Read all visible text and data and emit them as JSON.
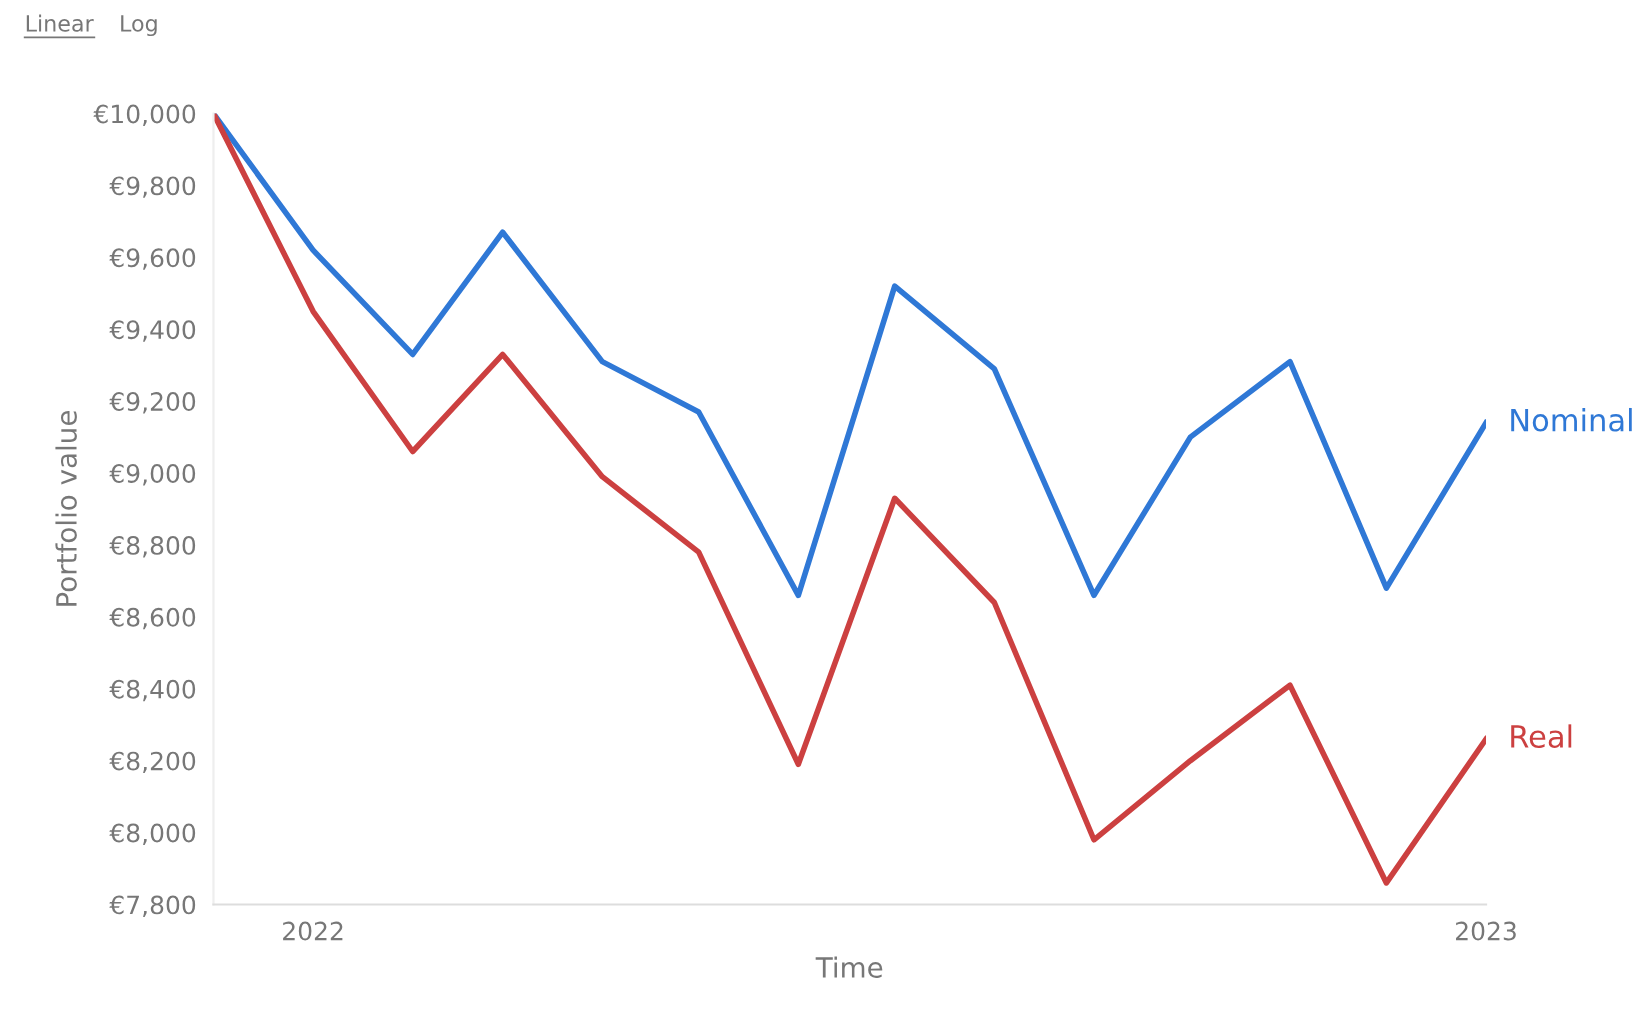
{
  "chart_data": {
    "type": "line",
    "xlabel": "Time",
    "ylabel": "Portfolio value",
    "annotations": [
      "Linear",
      "Log"
    ],
    "x": [
      "2021-12",
      "2022-01",
      "2022-02",
      "2022-03",
      "2022-04",
      "2022-05",
      "2022-06",
      "2022-07",
      "2022-08",
      "2022-09",
      "2022-10",
      "2022-11",
      "2022-12",
      "2023-01"
    ],
    "series": [
      {
        "name": "Nominal",
        "color": "#2f78d6",
        "values": [
          10000,
          9620,
          9330,
          9670,
          9310,
          9170,
          8660,
          9520,
          9290,
          8660,
          9100,
          9310,
          8680,
          9140
        ]
      },
      {
        "name": "Real",
        "color": "#cc4040",
        "values": [
          10000,
          9450,
          9060,
          9330,
          8990,
          8780,
          8190,
          8930,
          8640,
          7980,
          8200,
          8410,
          7860,
          8260
        ]
      }
    ],
    "xlim": [
      "2021-12",
      "2023-01"
    ],
    "xticks": [
      {
        "value": "2022-01",
        "label": "2022"
      },
      {
        "value": "2023-01",
        "label": "2023"
      }
    ],
    "ylim": [
      7800,
      10000
    ],
    "yticks": [
      {
        "value": 7800,
        "label": "€7,800"
      },
      {
        "value": 8000,
        "label": "€8,000"
      },
      {
        "value": 8200,
        "label": "€8,200"
      },
      {
        "value": 8400,
        "label": "€8,400"
      },
      {
        "value": 8600,
        "label": "€8,600"
      },
      {
        "value": 8800,
        "label": "€8,800"
      },
      {
        "value": 9000,
        "label": "€9,000"
      },
      {
        "value": 9200,
        "label": "€9,200"
      },
      {
        "value": 9400,
        "label": "€9,400"
      },
      {
        "value": 9600,
        "label": "€9,600"
      },
      {
        "value": 9800,
        "label": "€9,800"
      },
      {
        "value": 10000,
        "label": "€10,000"
      }
    ],
    "grid": false,
    "legend": false,
    "marker": "none",
    "line_style": "solid"
  }
}
